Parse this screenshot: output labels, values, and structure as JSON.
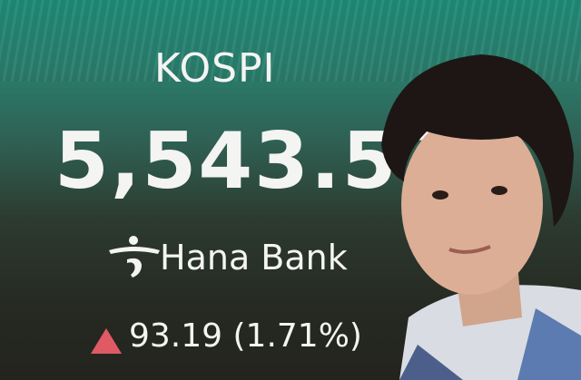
{
  "board": {
    "index_name": "KOSPI",
    "index_value": "5,543.52",
    "sponsor": "Hana Bank",
    "change_icon": "triangle-up-icon",
    "change": "93.19 (1.71%)"
  },
  "colors": {
    "up": "#e05a66",
    "background_top": "#1f8a78",
    "background_bottom": "#23241e"
  }
}
